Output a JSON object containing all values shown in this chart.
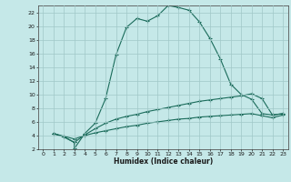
{
  "xlabel": "Humidex (Indice chaleur)",
  "bg_color": "#c5e8e8",
  "grid_color": "#a0c8c8",
  "line_color": "#1a6b5a",
  "xlim": [
    -0.5,
    23.5
  ],
  "ylim": [
    2,
    23
  ],
  "xticks": [
    0,
    1,
    2,
    3,
    4,
    5,
    6,
    7,
    8,
    9,
    10,
    11,
    12,
    13,
    14,
    15,
    16,
    17,
    18,
    19,
    20,
    21,
    22,
    23
  ],
  "yticks": [
    2,
    4,
    6,
    8,
    10,
    12,
    14,
    16,
    18,
    20,
    22
  ],
  "series1_x": [
    1,
    2,
    3,
    3,
    4,
    5,
    6,
    7,
    8,
    9,
    10,
    11,
    12,
    13,
    14,
    15,
    16,
    17,
    18,
    19,
    20,
    21,
    22,
    23
  ],
  "series1_y": [
    4.3,
    3.8,
    3.0,
    2.1,
    4.3,
    5.8,
    9.4,
    15.8,
    19.8,
    21.1,
    20.7,
    21.5,
    23.0,
    22.7,
    22.3,
    20.6,
    18.2,
    15.2,
    11.5,
    10.0,
    9.3,
    7.2,
    7.0,
    7.2
  ],
  "series2_x": [
    1,
    2,
    3,
    4,
    5,
    6,
    7,
    8,
    9,
    10,
    11,
    12,
    13,
    14,
    15,
    16,
    17,
    18,
    19,
    20,
    21,
    22,
    23
  ],
  "series2_y": [
    4.3,
    3.8,
    3.0,
    4.1,
    5.0,
    5.8,
    6.4,
    6.8,
    7.1,
    7.5,
    7.8,
    8.1,
    8.4,
    8.7,
    9.0,
    9.2,
    9.4,
    9.6,
    9.8,
    10.1,
    9.4,
    7.0,
    7.2
  ],
  "series3_x": [
    1,
    2,
    3,
    4,
    5,
    6,
    7,
    8,
    9,
    10,
    11,
    12,
    13,
    14,
    15,
    16,
    17,
    18,
    19,
    20,
    21,
    22,
    23
  ],
  "series3_y": [
    4.3,
    3.9,
    3.5,
    4.0,
    4.4,
    4.7,
    5.0,
    5.3,
    5.5,
    5.8,
    6.0,
    6.2,
    6.4,
    6.5,
    6.7,
    6.8,
    6.9,
    7.0,
    7.1,
    7.2,
    6.9,
    6.6,
    7.0
  ]
}
